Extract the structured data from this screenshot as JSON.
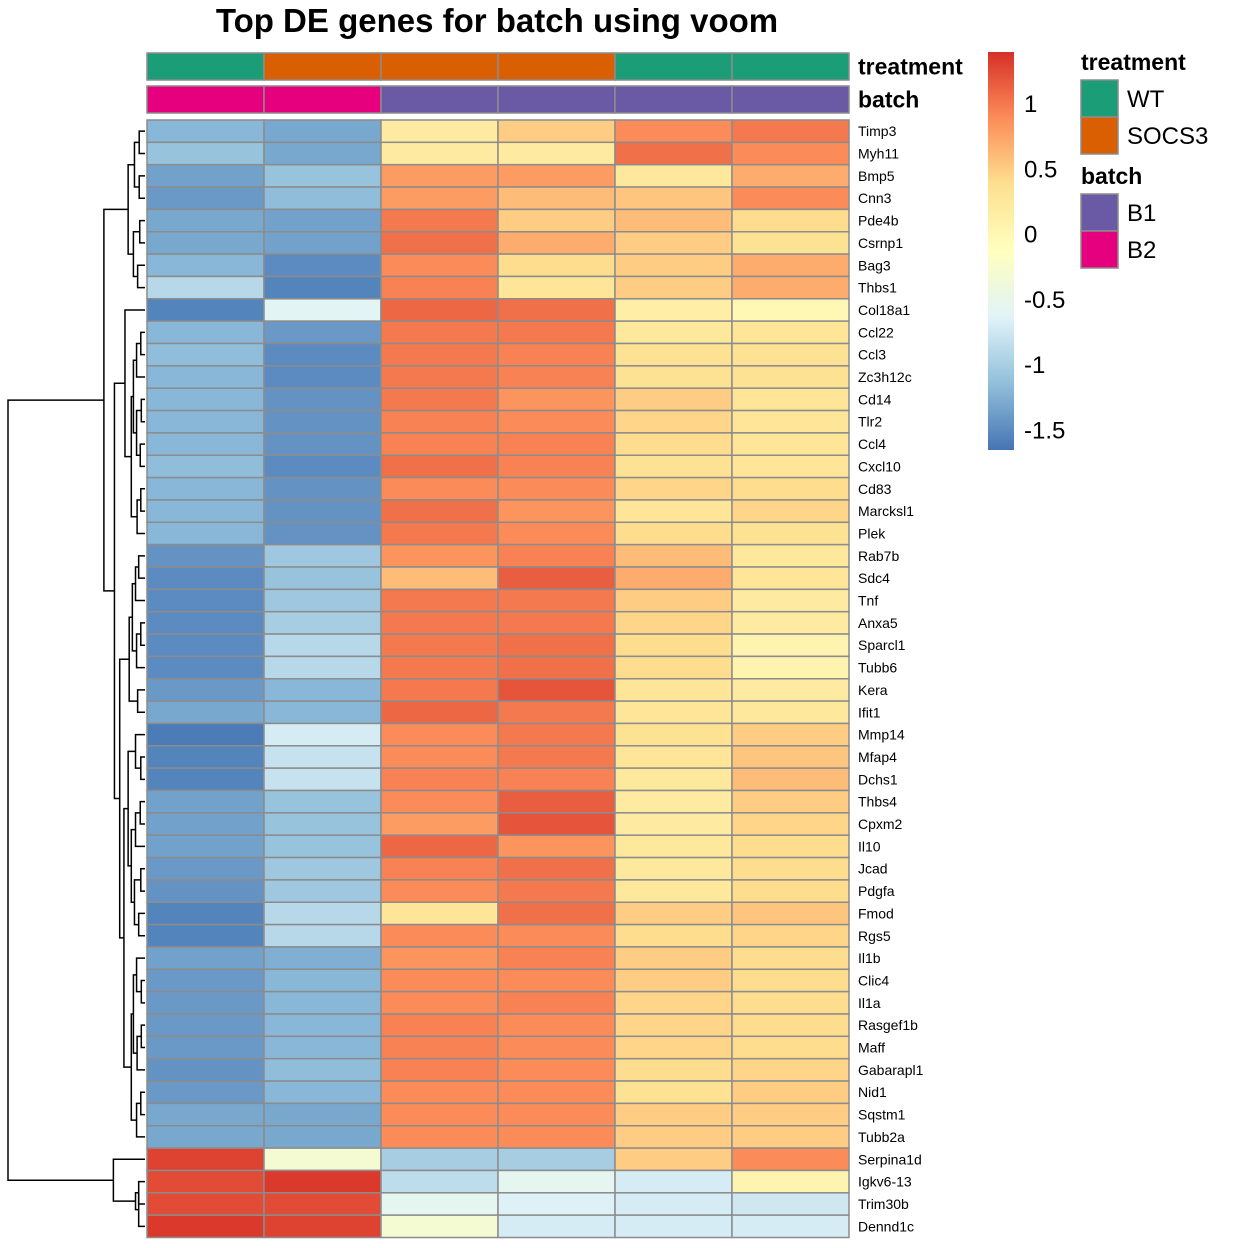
{
  "chart_data": {
    "type": "heatmap",
    "title": "Top DE genes for batch using voom",
    "n_samples": 6,
    "annotations": [
      {
        "name": "treatment",
        "values": [
          "WT",
          "SOCS3",
          "SOCS3",
          "SOCS3",
          "WT",
          "WT"
        ]
      },
      {
        "name": "batch",
        "values": [
          "B2",
          "B2",
          "B1",
          "B1",
          "B1",
          "B1"
        ]
      }
    ],
    "annotation_legends": [
      {
        "title": "treatment",
        "levels": [
          {
            "label": "WT",
            "color": "#1b9e77"
          },
          {
            "label": "SOCS3",
            "color": "#d95f02"
          }
        ]
      },
      {
        "title": "batch",
        "levels": [
          {
            "label": "B1",
            "color": "#6a5aa6"
          },
          {
            "label": "B2",
            "color": "#e7007d"
          }
        ]
      }
    ],
    "genes": [
      "Timp3",
      "Myh11",
      "Bmp5",
      "Cnn3",
      "Pde4b",
      "Csrnp1",
      "Bag3",
      "Thbs1",
      "Col18a1",
      "Ccl22",
      "Ccl3",
      "Zc3h12c",
      "Cd14",
      "Tlr2",
      "Ccl4",
      "Cxcl10",
      "Cd83",
      "Marcksl1",
      "Plek",
      "Rab7b",
      "Sdc4",
      "Tnf",
      "Anxa5",
      "Sparcl1",
      "Tubb6",
      "Kera",
      "Ifit1",
      "Mmp14",
      "Mfap4",
      "Dchs1",
      "Thbs4",
      "Cpxm2",
      "Il10",
      "Jcad",
      "Pdgfa",
      "Fmod",
      "Rgs5",
      "Il1b",
      "Clic4",
      "Il1a",
      "Rasgef1b",
      "Maff",
      "Gabarapl1",
      "Nid1",
      "Sqstm1",
      "Tubb2a",
      "Serpina1d",
      "Igkv6-13",
      "Trim30b",
      "Dennd1c"
    ],
    "values": [
      [
        -1.2,
        -1.3,
        0.2,
        0.5,
        0.9,
        1.0
      ],
      [
        -1.1,
        -1.3,
        0.2,
        0.2,
        1.05,
        0.9
      ],
      [
        -1.35,
        -1.1,
        0.8,
        0.8,
        0.25,
        0.7
      ],
      [
        -1.4,
        -1.15,
        0.8,
        0.6,
        0.55,
        0.9
      ],
      [
        -1.3,
        -1.35,
        1.0,
        0.5,
        0.6,
        0.4
      ],
      [
        -1.3,
        -1.35,
        1.05,
        0.7,
        0.5,
        0.35
      ],
      [
        -1.2,
        -1.5,
        0.9,
        0.4,
        0.5,
        0.7
      ],
      [
        -0.9,
        -1.55,
        0.95,
        0.3,
        0.5,
        0.7
      ],
      [
        -1.55,
        -0.6,
        1.1,
        1.05,
        0.15,
        0.0
      ],
      [
        -1.2,
        -1.4,
        1.0,
        1.0,
        0.25,
        0.3
      ],
      [
        -1.15,
        -1.5,
        1.0,
        0.95,
        0.35,
        0.35
      ],
      [
        -1.2,
        -1.5,
        1.0,
        0.95,
        0.35,
        0.35
      ],
      [
        -1.2,
        -1.45,
        1.0,
        0.85,
        0.5,
        0.3
      ],
      [
        -1.2,
        -1.45,
        0.95,
        0.9,
        0.45,
        0.3
      ],
      [
        -1.2,
        -1.45,
        0.95,
        0.95,
        0.4,
        0.3
      ],
      [
        -1.15,
        -1.5,
        1.05,
        0.95,
        0.35,
        0.3
      ],
      [
        -1.2,
        -1.45,
        0.9,
        0.9,
        0.45,
        0.4
      ],
      [
        -1.2,
        -1.45,
        1.05,
        0.85,
        0.3,
        0.45
      ],
      [
        -1.2,
        -1.45,
        1.0,
        0.9,
        0.4,
        0.35
      ],
      [
        -1.45,
        -1.05,
        0.85,
        0.95,
        0.6,
        0.25
      ],
      [
        -1.5,
        -1.1,
        0.6,
        1.15,
        0.7,
        0.3
      ],
      [
        -1.5,
        -1.05,
        1.0,
        1.0,
        0.5,
        0.2
      ],
      [
        -1.5,
        -1.0,
        1.0,
        1.0,
        0.45,
        0.2
      ],
      [
        -1.5,
        -0.9,
        1.0,
        1.05,
        0.4,
        0.05
      ],
      [
        -1.5,
        -0.9,
        1.0,
        1.05,
        0.4,
        0.05
      ],
      [
        -1.4,
        -1.2,
        1.0,
        1.2,
        0.3,
        0.2
      ],
      [
        -1.3,
        -1.2,
        1.1,
        1.0,
        0.3,
        0.25
      ],
      [
        -1.6,
        -0.7,
        0.9,
        1.0,
        0.35,
        0.5
      ],
      [
        -1.55,
        -0.8,
        0.9,
        1.0,
        0.3,
        0.55
      ],
      [
        -1.55,
        -0.8,
        0.95,
        0.95,
        0.25,
        0.6
      ],
      [
        -1.35,
        -1.1,
        0.9,
        1.15,
        0.2,
        0.5
      ],
      [
        -1.35,
        -1.1,
        0.8,
        1.2,
        0.2,
        0.45
      ],
      [
        -1.35,
        -1.1,
        1.1,
        0.85,
        0.25,
        0.4
      ],
      [
        -1.4,
        -1.05,
        0.95,
        1.05,
        0.25,
        0.4
      ],
      [
        -1.45,
        -1.05,
        0.9,
        1.0,
        0.25,
        0.4
      ],
      [
        -1.55,
        -0.9,
        0.3,
        1.05,
        0.5,
        0.55
      ],
      [
        -1.55,
        -0.9,
        0.9,
        0.9,
        0.4,
        0.45
      ],
      [
        -1.35,
        -1.25,
        0.85,
        0.95,
        0.5,
        0.4
      ],
      [
        -1.4,
        -1.2,
        0.9,
        0.9,
        0.5,
        0.4
      ],
      [
        -1.4,
        -1.2,
        0.9,
        0.95,
        0.45,
        0.4
      ],
      [
        -1.4,
        -1.2,
        0.95,
        0.9,
        0.45,
        0.4
      ],
      [
        -1.4,
        -1.2,
        0.95,
        0.9,
        0.45,
        0.4
      ],
      [
        -1.45,
        -1.15,
        0.95,
        0.9,
        0.4,
        0.45
      ],
      [
        -1.4,
        -1.2,
        0.9,
        0.9,
        0.35,
        0.5
      ],
      [
        -1.3,
        -1.3,
        0.9,
        0.9,
        0.5,
        0.5
      ],
      [
        -1.3,
        -1.3,
        0.9,
        0.9,
        0.5,
        0.5
      ],
      [
        1.3,
        -0.3,
        -1.0,
        -1.0,
        0.5,
        0.9
      ],
      [
        1.25,
        1.35,
        -0.85,
        -0.55,
        -0.7,
        0.05
      ],
      [
        1.25,
        1.25,
        -0.55,
        -0.65,
        -0.7,
        -0.75
      ],
      [
        1.35,
        1.3,
        -0.3,
        -0.7,
        -0.7,
        -0.7
      ]
    ],
    "colorbar": {
      "min": -1.65,
      "max": 1.4,
      "ticks": [
        -1.5,
        -1,
        -0.5,
        0,
        0.5,
        1
      ],
      "tick_labels": [
        "-1.5",
        "-1",
        "-0.5",
        "0",
        "0.5",
        "1"
      ],
      "palette": [
        "#4575b4",
        "#91bfdb",
        "#e0f3f8",
        "#ffffbf",
        "#fee090",
        "#fc8d59",
        "#d73027"
      ]
    }
  }
}
